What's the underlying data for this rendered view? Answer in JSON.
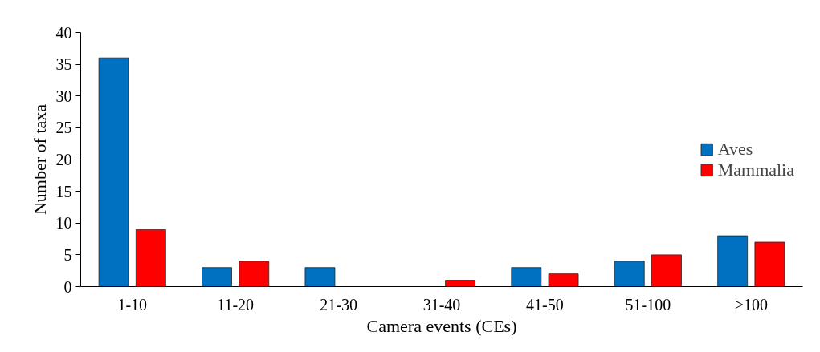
{
  "chart_data": {
    "type": "bar",
    "xlabel": "Camera events (CEs)",
    "ylabel": "Number of taxa",
    "categories": [
      "1-10",
      "11-20",
      "21-30",
      "31-40",
      "41-50",
      "51-100",
      ">100"
    ],
    "series": [
      {
        "name": "Aves",
        "color": "#0070c0",
        "values": [
          36,
          3,
          3,
          0,
          3,
          4,
          8
        ]
      },
      {
        "name": "Mammalia",
        "color": "#ff0000",
        "values": [
          9,
          4,
          0,
          1,
          2,
          5,
          7
        ]
      }
    ],
    "ylim": [
      0,
      40
    ],
    "yticks": [
      0,
      5,
      10,
      15,
      20,
      25,
      30,
      35,
      40
    ],
    "grid": false,
    "legend": "right"
  }
}
